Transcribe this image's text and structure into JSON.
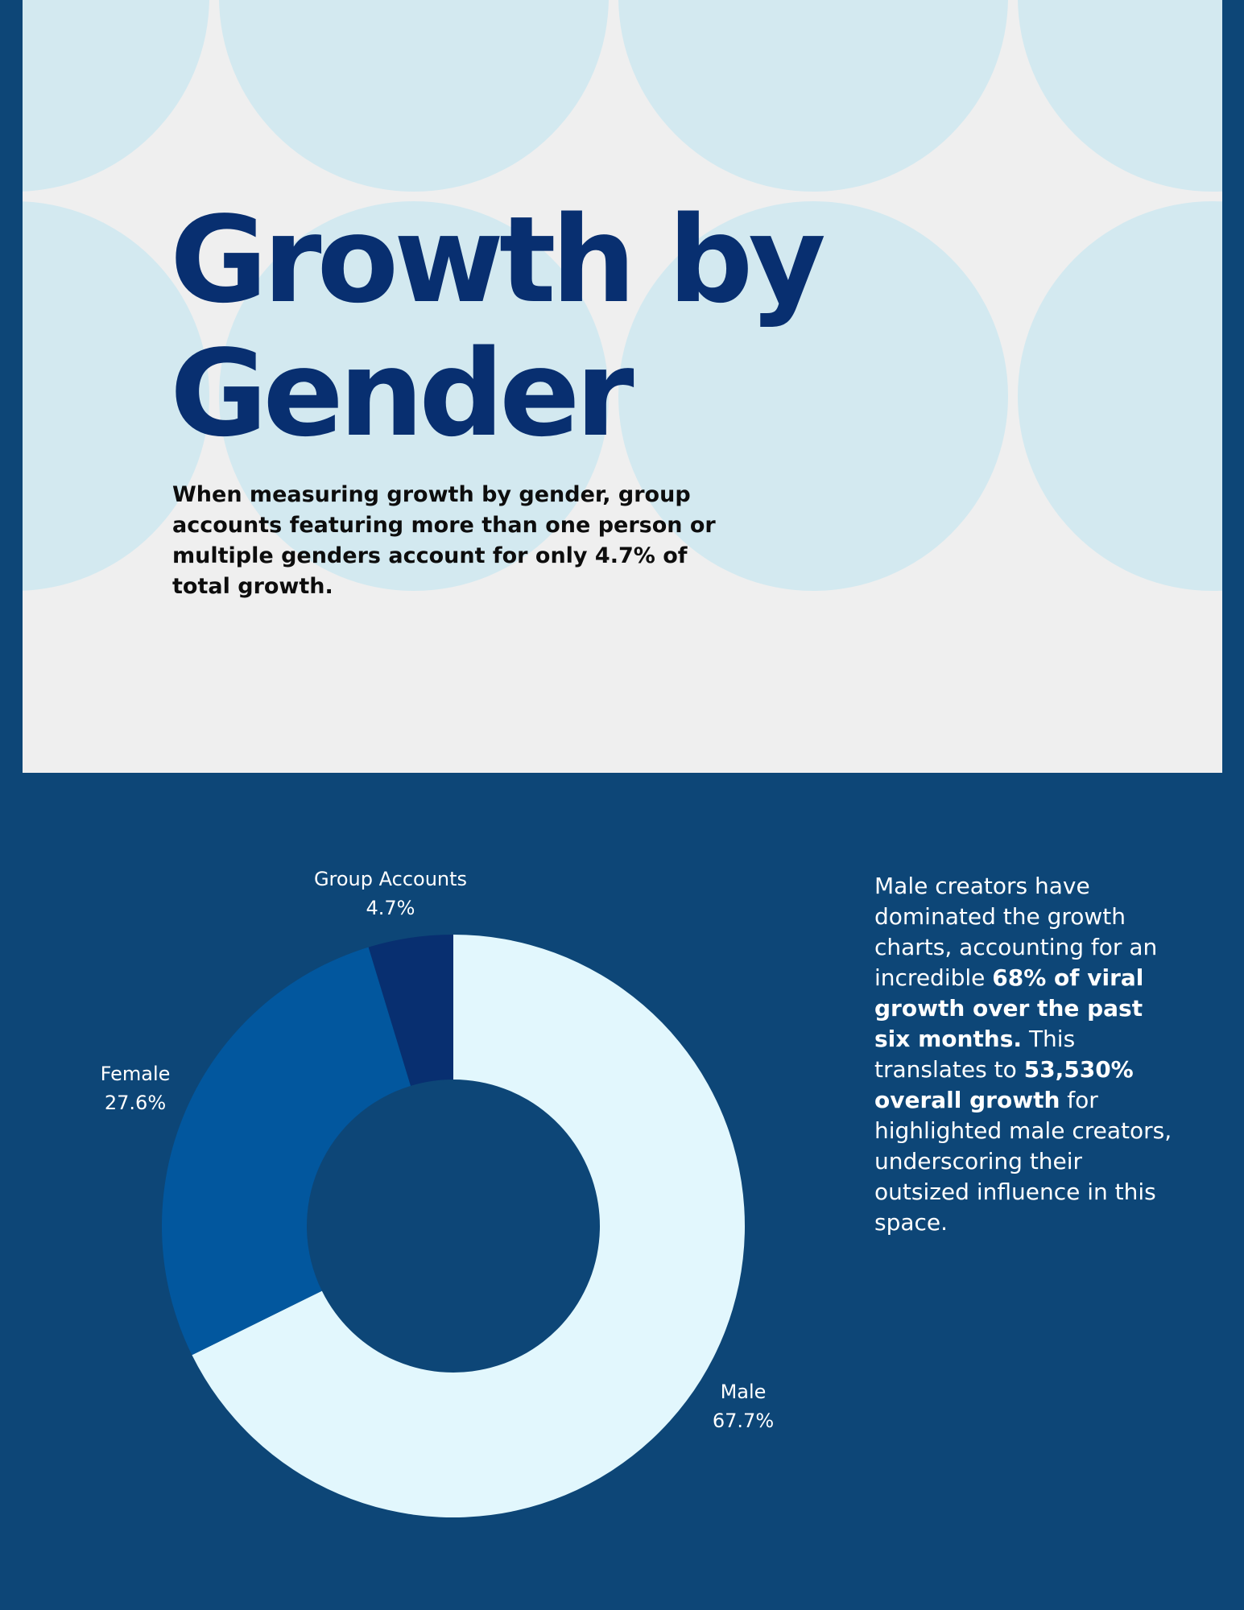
{
  "header": {
    "title_line1": "Growth by",
    "title_line2": "Gender",
    "intro": "When measuring growth by gender, group accounts featuring more than one person or multiple genders account for only 4.7% of total growth."
  },
  "colors": {
    "page_background": "#0d4677",
    "panel_background": "#efefef",
    "circle_fill": "#d3e9f0",
    "title_color": "#082f70",
    "male": "#e2f7fd",
    "female": "#02579e",
    "group_accounts": "#082f70"
  },
  "chart_data": {
    "type": "pie",
    "style": "donut",
    "slices": [
      {
        "label": "Male",
        "value": 67.7,
        "value_label": "67.7%",
        "color": "#e2f7fd"
      },
      {
        "label": "Female",
        "value": 27.6,
        "value_label": "27.6%",
        "color": "#02579e"
      },
      {
        "label": "Group Accounts",
        "value": 4.7,
        "value_label": "4.7%",
        "color": "#082f70"
      }
    ]
  },
  "side_text": {
    "part1": "Male creators have dominated the growth charts, accounting for an incredible ",
    "bold1": "68% of viral growth over the past six months.",
    "part2": " This translates to ",
    "bold2": "53,530% overall growth",
    "part3": " for highlighted male creators, underscoring their outsized influence in this space."
  }
}
